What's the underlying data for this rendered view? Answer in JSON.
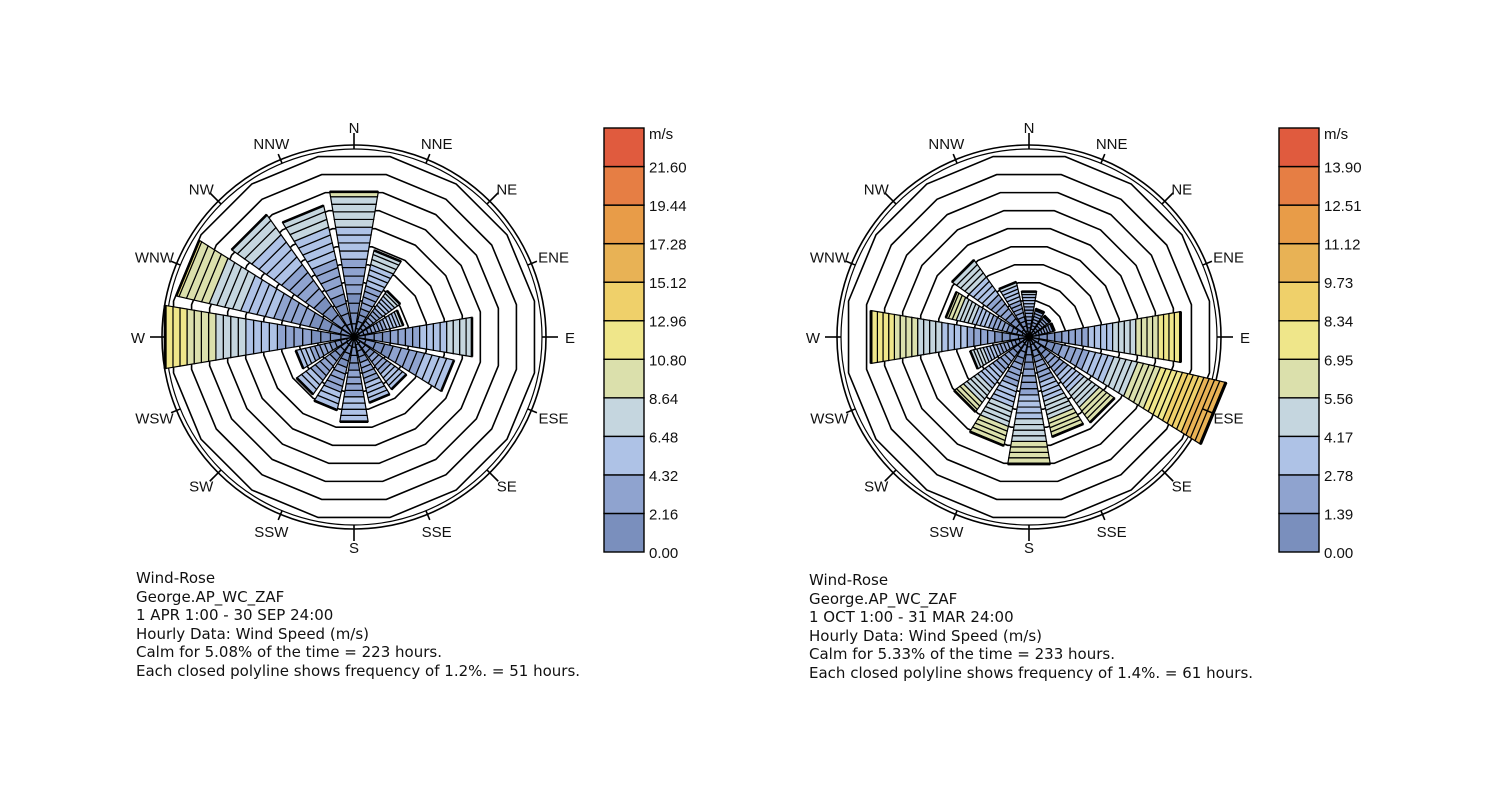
{
  "chart_data": [
    {
      "type": "wind-rose",
      "unit_label": "m/s",
      "directions": [
        "N",
        "NNE",
        "NE",
        "ENE",
        "E",
        "ESE",
        "SE",
        "SSE",
        "S",
        "SSW",
        "SW",
        "WSW",
        "W",
        "WNW",
        "NW",
        "NNW"
      ],
      "legend_levels": [
        "0.00",
        "2.16",
        "4.32",
        "6.48",
        "8.64",
        "10.80",
        "12.96",
        "15.12",
        "17.28",
        "19.44",
        "21.60"
      ],
      "legend_colors": [
        "#7a8fbd",
        "#8fa3cf",
        "#aec2e6",
        "#c5d6df",
        "#dbe0ac",
        "#efe68a",
        "#efd06a",
        "#e8b255",
        "#e89c48",
        "#e67e44",
        "#e05b3e"
      ],
      "speed_bins": [
        0,
        2.16,
        4.32,
        6.48,
        8.64,
        10.8,
        12.96,
        15.12,
        17.28,
        19.44,
        21.6,
        23.76
      ],
      "ring_step_percent": 1.2,
      "rings": 10,
      "direction_frequency_percent": [
        9.6,
        5.8,
        3.7,
        3.3,
        7.8,
        6.7,
        4.2,
        4.4,
        5.6,
        4.9,
        4.6,
        3.9,
        12.5,
        11.9,
        9.8,
        8.8
      ],
      "direction_max_speed": [
        9.0,
        8.0,
        7.5,
        7.0,
        8.6,
        6.5,
        6.5,
        6.5,
        6.5,
        6.0,
        6.0,
        6.0,
        12.5,
        11.0,
        8.0,
        8.0
      ],
      "title_lines": [
        "Wind-Rose",
        "George.AP_WC_ZAF",
        "1 APR 1:00 - 30 SEP 24:00",
        "Hourly Data: Wind Speed (m/s)",
        "Calm for 5.08% of the time = 223 hours.",
        "Each closed polyline shows frequency of 1.2%. = 51 hours."
      ]
    },
    {
      "type": "wind-rose",
      "unit_label": "m/s",
      "directions": [
        "N",
        "NNE",
        "NE",
        "ENE",
        "E",
        "ESE",
        "SE",
        "SSE",
        "S",
        "SSW",
        "SW",
        "WSW",
        "W",
        "WNW",
        "NW",
        "NNW"
      ],
      "legend_levels": [
        "0.00",
        "1.39",
        "2.78",
        "4.17",
        "5.56",
        "6.95",
        "8.34",
        "9.73",
        "11.12",
        "12.51",
        "13.90"
      ],
      "legend_colors": [
        "#7a8fbd",
        "#8fa3cf",
        "#aec2e6",
        "#c5d6df",
        "#dbe0ac",
        "#efe68a",
        "#efd06a",
        "#e8b255",
        "#e89c48",
        "#e67e44",
        "#e05b3e"
      ],
      "speed_bins": [
        0,
        1.39,
        2.78,
        4.17,
        5.56,
        6.95,
        8.34,
        9.73,
        11.12,
        12.51,
        13.9,
        15.29
      ],
      "ring_step_percent": 1.4,
      "rings": 10,
      "direction_frequency_percent": [
        3.5,
        2.2,
        2.0,
        2.0,
        11.7,
        15.4,
        8.0,
        7.8,
        9.8,
        8.5,
        7.0,
        4.6,
        12.2,
        6.5,
        7.2,
        4.3
      ],
      "direction_max_speed": [
        4.5,
        3.0,
        3.0,
        3.0,
        8.4,
        11.2,
        7.0,
        7.0,
        7.0,
        7.0,
        6.5,
        5.6,
        8.4,
        6.5,
        5.6,
        4.5
      ],
      "title_lines": [
        "Wind-Rose",
        "George.AP_WC_ZAF",
        "1 OCT 1:00 - 31 MAR 24:00",
        "Hourly Data: Wind Speed (m/s)",
        "Calm for 5.33% of the time = 233 hours.",
        "Each closed polyline shows frequency of 1.4%. = 61 hours."
      ]
    }
  ]
}
